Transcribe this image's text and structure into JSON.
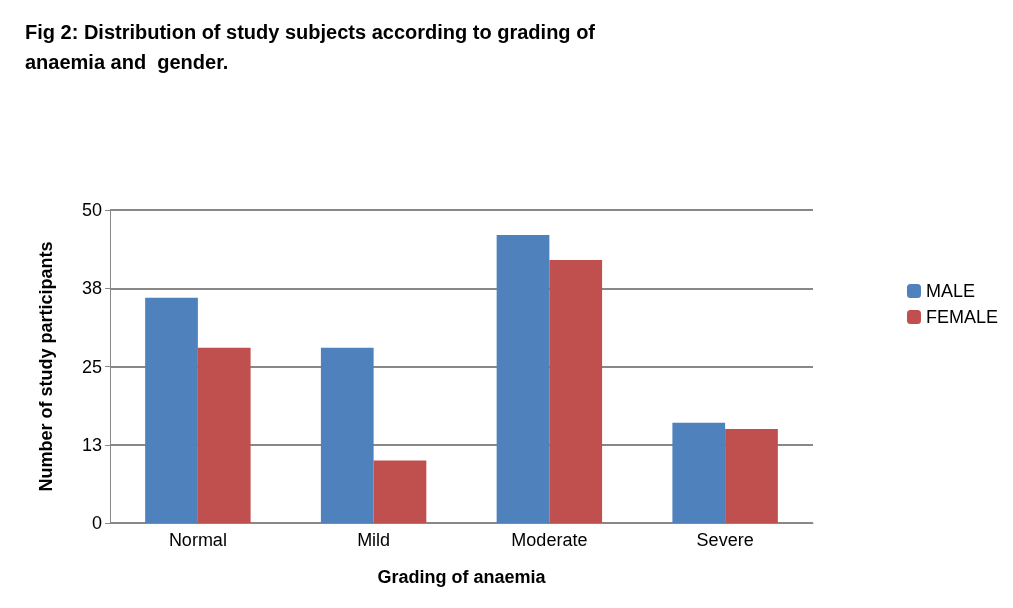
{
  "chart_data": {
    "type": "bar",
    "title": "Fig 2: Distribution of study subjects according to grading of\nanaemia and  gender.",
    "xlabel": "Grading of anaemia",
    "ylabel": "Number of study participants",
    "categories": [
      "Normal",
      "Mild",
      "Moderate",
      "Severe"
    ],
    "series": [
      {
        "name": "MALE",
        "color": "#4f81bd",
        "values": [
          36,
          28,
          46,
          16
        ]
      },
      {
        "name": "FEMALE",
        "color": "#c0504d",
        "values": [
          28,
          10,
          42,
          15
        ]
      }
    ],
    "ylim": [
      0,
      50
    ],
    "yticks": [
      0,
      {
        "value": 12.5,
        "label": "13"
      },
      25,
      {
        "value": 37.5,
        "label": "38"
      },
      50
    ],
    "grid": "y",
    "legend": "right"
  }
}
